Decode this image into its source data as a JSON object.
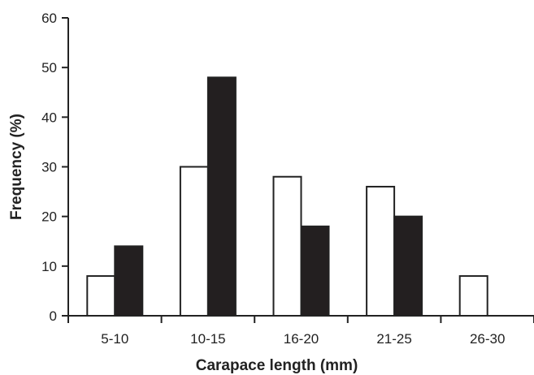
{
  "chart_data": {
    "type": "bar",
    "categories": [
      "5-10",
      "10-15",
      "16-20",
      "21-25",
      "26-30"
    ],
    "series": [
      {
        "color": "#ffffff",
        "values": [
          8,
          30,
          28,
          26,
          8
        ]
      },
      {
        "color": "#231f20",
        "values": [
          14,
          48,
          18,
          20,
          0
        ]
      }
    ],
    "xlabel": "Carapace length (mm)",
    "ylabel": "Frequency (%)",
    "ylim": [
      0,
      60
    ],
    "yticks": [
      0,
      10,
      20,
      30,
      40,
      50,
      60
    ],
    "grid": false,
    "legend": "none"
  }
}
